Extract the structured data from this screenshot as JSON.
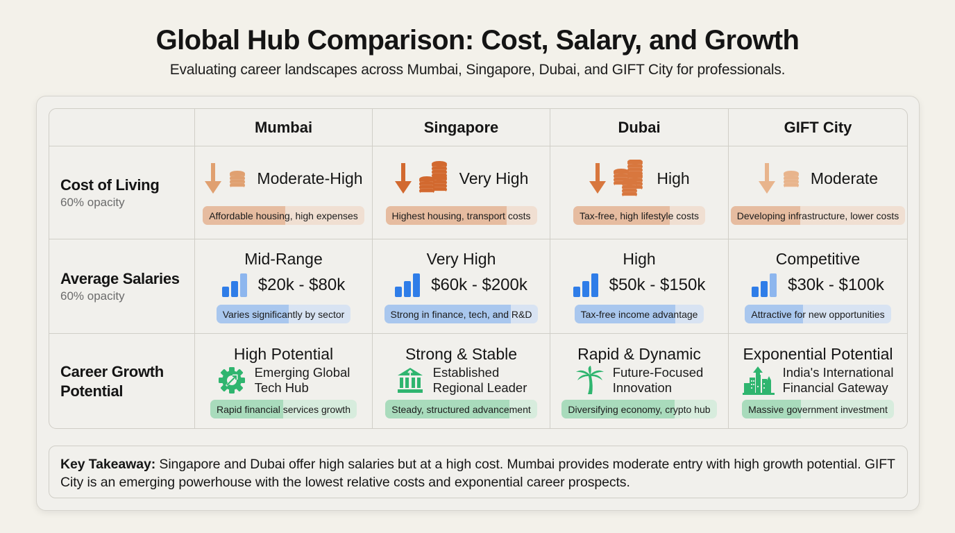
{
  "header": {
    "title": "Global Hub Comparison: Cost, Salary, and Growth",
    "subtitle": "Evaluating career landscapes across Mumbai, Singapore, Dubai, and GIFT City for professionals."
  },
  "table": {
    "columns": [
      "Mumbai",
      "Singapore",
      "Dubai",
      "GIFT City"
    ],
    "rows": [
      {
        "label": "Cost of Living",
        "sublabel": "60% opacity"
      },
      {
        "label": "Average Salaries",
        "sublabel": "60% opacity"
      },
      {
        "label": "Career Growth Potential",
        "sublabel": ""
      }
    ],
    "cost": [
      {
        "icon": "down-arrow-coins-icon",
        "value": "Moderate-High",
        "note": "Affordable housing, high expenses",
        "bar_pct": 51,
        "coins": 1,
        "color": "#e0a070"
      },
      {
        "icon": "down-arrow-coins-icon",
        "value": "Very High",
        "note": "Highest housing, transport costs",
        "bar_pct": 80,
        "coins": 2,
        "color": "#d2692f"
      },
      {
        "icon": "down-arrow-coins-icon",
        "value": "High",
        "note": "Tax-free, high lifestyle costs",
        "bar_pct": 73,
        "coins": 3,
        "color": "#d8773e"
      },
      {
        "icon": "down-arrow-coins-icon",
        "value": "Moderate",
        "note": "Developing infrastructure, lower costs",
        "bar_pct": 40,
        "coins": 1,
        "color": "#e8b48c"
      }
    ],
    "salary": [
      {
        "tier": "Mid-Range",
        "range": "$20k - $80k",
        "note": "Varies significantly by sector",
        "bar_pct": 54,
        "signal_bars": 2
      },
      {
        "tier": "Very High",
        "range": "$60k - $200k",
        "note": "Strong in finance, tech, and R&D",
        "bar_pct": 82,
        "signal_bars": 3
      },
      {
        "tier": "High",
        "range": "$50k - $150k",
        "note": "Tax-free income advantage",
        "bar_pct": 78,
        "signal_bars": 3
      },
      {
        "tier": "Competitive",
        "range": "$30k - $100k",
        "note": "Attractive for new opportunities",
        "bar_pct": 40,
        "signal_bars": 2
      }
    ],
    "growth": [
      {
        "tier": "High Potential",
        "icon": "gear-growth-icon",
        "desc1": "Emerging Global",
        "desc2": "Tech Hub",
        "note": "Rapid financial services growth",
        "bar_pct": 50
      },
      {
        "tier": "Strong & Stable",
        "icon": "bank-building-icon",
        "desc1": "Established",
        "desc2": "Regional Leader",
        "note": "Steady, structured advancement",
        "bar_pct": 82
      },
      {
        "tier": "Rapid & Dynamic",
        "icon": "palm-tree-icon",
        "desc1": "Future-Focused",
        "desc2": "Innovation",
        "note": "Diversifying economy, crypto hub",
        "bar_pct": 73
      },
      {
        "tier": "Exponential Potential",
        "icon": "city-skyline-arrow-icon",
        "desc1": "India's International",
        "desc2": "Financial Gateway",
        "note": "Massive government investment",
        "bar_pct": 39
      }
    ]
  },
  "takeaway": {
    "label": "Key Takeaway:",
    "text": " Singapore and Dubai offer high salaries but at a high cost. Mumbai provides moderate entry with high growth potential. GIFT City is an emerging powerhouse with the lowest relative costs and exponential career prospects."
  },
  "colors": {
    "cost_accent": "#d2692f",
    "salary_accent": "#2f7de8",
    "growth_accent": "#2fb56f",
    "background": "#f3f1ea"
  }
}
